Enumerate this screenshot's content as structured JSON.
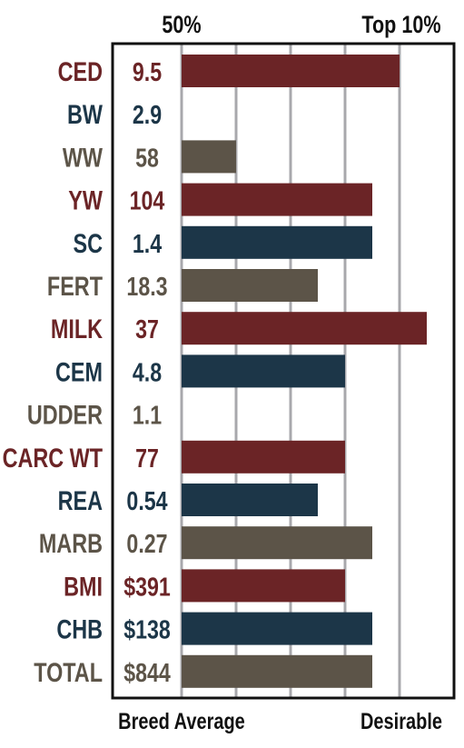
{
  "chart_data": {
    "type": "bar",
    "orientation": "horizontal",
    "top_labels": {
      "left": "50%",
      "right": "Top 10%"
    },
    "bottom_labels": {
      "left": "Breed Average",
      "right": "Desirable"
    },
    "scale_note": "Bar length represents relative percentile standing, from breed average (bar start) toward desirable; gridlines mark steps to Top 10%",
    "xlim": [
      0,
      10
    ],
    "grid": true,
    "colors": {
      "red": "#6b2426",
      "blue": "#1c3648",
      "brown": "#5c5448"
    },
    "rows": [
      {
        "trait": "CED",
        "value": "9.5",
        "bar": 8.0,
        "color": "red"
      },
      {
        "trait": "BW",
        "value": "2.9",
        "bar": 0,
        "color": "blue"
      },
      {
        "trait": "WW",
        "value": "58",
        "bar": 2.0,
        "color": "brown"
      },
      {
        "trait": "YW",
        "value": "104",
        "bar": 7.0,
        "color": "red"
      },
      {
        "trait": "SC",
        "value": "1.4",
        "bar": 7.0,
        "color": "blue"
      },
      {
        "trait": "FERT",
        "value": "18.3",
        "bar": 5.0,
        "color": "brown"
      },
      {
        "trait": "MILK",
        "value": "37",
        "bar": 9.0,
        "color": "red"
      },
      {
        "trait": "CEM",
        "value": "4.8",
        "bar": 6.0,
        "color": "blue"
      },
      {
        "trait": "UDDER",
        "value": "1.1",
        "bar": 0,
        "color": "brown"
      },
      {
        "trait": "CARC WT",
        "value": "77",
        "bar": 6.0,
        "color": "red"
      },
      {
        "trait": "REA",
        "value": "0.54",
        "bar": 5.0,
        "color": "blue"
      },
      {
        "trait": "MARB",
        "value": "0.27",
        "bar": 7.0,
        "color": "brown"
      },
      {
        "trait": "BMI",
        "value": "$391",
        "bar": 6.0,
        "color": "red"
      },
      {
        "trait": "CHB",
        "value": "$138",
        "bar": 7.0,
        "color": "blue"
      },
      {
        "trait": "TOTAL",
        "value": "$844",
        "bar": 7.0,
        "color": "brown"
      }
    ]
  }
}
